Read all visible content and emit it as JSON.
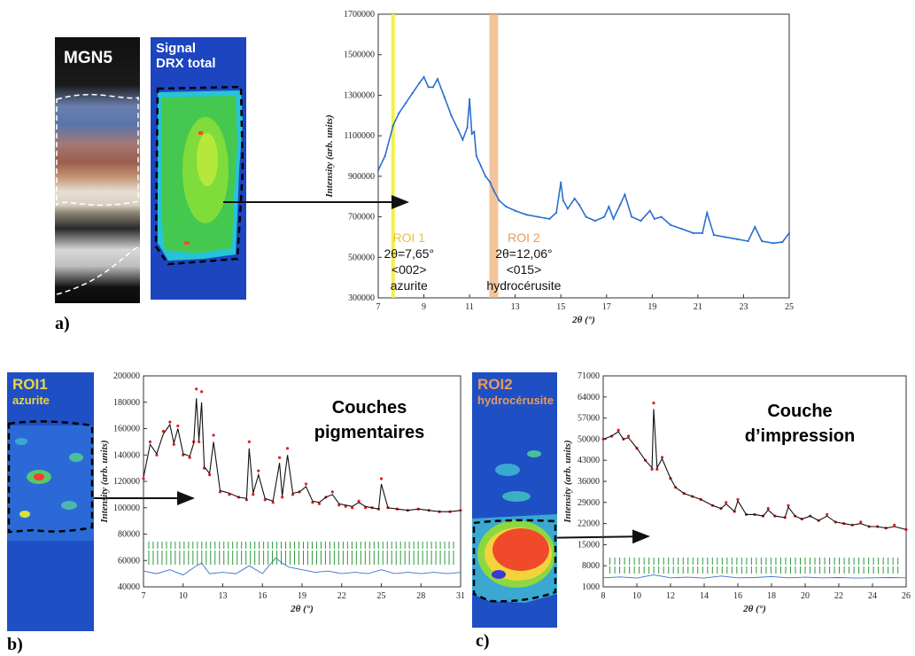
{
  "panels": {
    "a": {
      "letter": "a)",
      "photo_label": "MGN5",
      "map_label_line1": "Signal",
      "map_label_line2": "DRX total"
    },
    "b": {
      "letter": "b)",
      "map_label": "ROI1",
      "map_sublabel": "azurite",
      "annotation_line1": "Couches",
      "annotation_line2": "pigmentaires"
    },
    "c": {
      "letter": "c)",
      "map_label": "ROI2",
      "map_sublabel": "hydrocérusite",
      "annotation_line1": "Couche",
      "annotation_line2": "d’impression"
    }
  },
  "colors": {
    "pattern_blue": "#2a6fd1",
    "roi1_highlight": "#f3f04a",
    "roi2_highlight": "#f0b27a",
    "roi1_text": "#e8c13a",
    "roi2_text": "#e89a5a",
    "fit_red": "#e02020",
    "tick_green": "#2c9a3c",
    "residual_blue": "#3a6fd0"
  },
  "chart_data": [
    {
      "type": "line",
      "xlabel": "2θ (°)",
      "ylabel": "Intensity (arb. units)",
      "xlim": [
        7,
        25
      ],
      "ylim": [
        300000,
        1700000
      ],
      "x_ticks": [
        "7",
        "9",
        "11",
        "13",
        "15",
        "17",
        "19",
        "21",
        "23",
        "25"
      ],
      "y_ticks": [
        "300000",
        "500000",
        "700000",
        "900000",
        "1100000",
        "1300000",
        "1500000",
        "1700000"
      ],
      "grid": false,
      "series": [
        {
          "x": [
            7.0,
            7.3,
            7.65,
            7.9,
            8.2,
            8.5,
            8.8,
            9.0,
            9.2,
            9.4,
            9.6,
            9.9,
            10.2,
            10.5,
            10.7,
            10.9,
            11.0,
            11.1,
            11.2,
            11.3,
            11.5,
            11.7,
            11.9,
            12.06,
            12.3,
            12.6,
            13.0,
            13.5,
            14.0,
            14.5,
            14.8,
            15.0,
            15.1,
            15.3,
            15.6,
            15.8,
            16.1,
            16.5,
            16.9,
            17.1,
            17.3,
            17.6,
            17.8,
            18.1,
            18.5,
            18.9,
            19.1,
            19.4,
            19.8,
            20.3,
            20.8,
            21.2,
            21.4,
            21.7,
            22.2,
            22.7,
            23.2,
            23.5,
            23.8,
            24.3,
            24.7,
            25.0
          ],
          "y": [
            930000,
            1000000,
            1150000,
            1210000,
            1260000,
            1310000,
            1360000,
            1390000,
            1340000,
            1340000,
            1380000,
            1290000,
            1200000,
            1130000,
            1080000,
            1140000,
            1280000,
            1110000,
            1120000,
            1000000,
            950000,
            900000,
            870000,
            830000,
            780000,
            750000,
            730000,
            710000,
            700000,
            690000,
            720000,
            870000,
            780000,
            740000,
            790000,
            760000,
            700000,
            680000,
            700000,
            750000,
            690000,
            760000,
            810000,
            700000,
            680000,
            730000,
            690000,
            700000,
            660000,
            640000,
            620000,
            620000,
            720000,
            610000,
            600000,
            590000,
            580000,
            650000,
            580000,
            570000,
            575000,
            620000
          ]
        }
      ],
      "annotations": [
        {
          "label": "ROI 1",
          "angle": "2θ=7,65°",
          "hkl": "<002>",
          "phase": "azurite",
          "x": 7.65
        },
        {
          "label": "ROI 2",
          "angle": "2θ=12,06°",
          "hkl": "<015>",
          "phase": "hydrocérusite",
          "x": 12.06
        }
      ]
    },
    {
      "type": "line",
      "xlabel": "2θ (°)",
      "ylabel": "Intensity (arb. units)",
      "xlim": [
        7,
        31
      ],
      "ylim": [
        40000,
        200000
      ],
      "x_ticks": [
        "7",
        "10",
        "13",
        "16",
        "19",
        "22",
        "25",
        "28",
        "31"
      ],
      "y_ticks": [
        "40000",
        "60000",
        "80000",
        "100000",
        "120000",
        "140000",
        "160000",
        "180000",
        "200000"
      ],
      "grid": false,
      "series": [
        {
          "name": "observed",
          "x": [
            7.0,
            7.5,
            8.0,
            8.5,
            9.0,
            9.3,
            9.6,
            10.0,
            10.5,
            10.8,
            11.0,
            11.2,
            11.4,
            11.6,
            12.0,
            12.3,
            12.8,
            13.5,
            14.2,
            14.8,
            15.0,
            15.3,
            15.7,
            16.2,
            16.8,
            17.3,
            17.5,
            17.9,
            18.3,
            18.8,
            19.3,
            19.8,
            20.3,
            20.8,
            21.3,
            21.8,
            22.3,
            22.8,
            23.3,
            23.8,
            24.3,
            24.8,
            25.0,
            25.5,
            26.2,
            27.0,
            27.8,
            28.6,
            29.4,
            30.2,
            31.0
          ],
          "y": [
            122000,
            150000,
            140000,
            158000,
            165000,
            148000,
            162000,
            140000,
            138000,
            150000,
            190000,
            150000,
            188000,
            130000,
            125000,
            155000,
            112000,
            110000,
            108000,
            106000,
            150000,
            110000,
            128000,
            106000,
            104000,
            138000,
            108000,
            145000,
            110000,
            112000,
            118000,
            104000,
            103000,
            108000,
            112000,
            102000,
            101000,
            100000,
            105000,
            100000,
            100000,
            99000,
            122000,
            100000,
            99000,
            98000,
            99000,
            98000,
            97000,
            97000,
            98000
          ]
        },
        {
          "name": "calculated",
          "x": [
            7.0,
            7.5,
            8.0,
            8.5,
            9.0,
            9.3,
            9.6,
            10.0,
            10.5,
            10.8,
            11.0,
            11.2,
            11.4,
            11.6,
            12.0,
            12.3,
            12.8,
            13.5,
            14.2,
            14.8,
            15.0,
            15.3,
            15.7,
            16.2,
            16.8,
            17.3,
            17.5,
            17.9,
            18.3,
            18.8,
            19.3,
            19.8,
            20.3,
            20.8,
            21.3,
            21.8,
            22.3,
            22.8,
            23.3,
            23.8,
            24.3,
            24.8,
            25.0,
            25.5,
            26.2,
            27.0,
            27.8,
            28.6,
            29.4,
            30.2,
            31.0
          ],
          "y": [
            123000,
            148000,
            141000,
            156000,
            163000,
            149000,
            160000,
            141000,
            139000,
            149000,
            183000,
            151000,
            180000,
            131000,
            126000,
            150000,
            113000,
            111000,
            108000,
            107000,
            145000,
            111000,
            125000,
            107000,
            105000,
            134000,
            109000,
            140000,
            111000,
            112000,
            116000,
            105000,
            104000,
            108000,
            110000,
            103000,
            102000,
            101000,
            104000,
            101000,
            100000,
            99000,
            118000,
            100000,
            99000,
            98000,
            99000,
            98000,
            97000,
            97000,
            98000
          ]
        },
        {
          "name": "difference",
          "x": [
            7.0,
            8.0,
            9.0,
            10.0,
            11.0,
            11.4,
            12.0,
            13.0,
            14.0,
            15.0,
            16.0,
            17.0,
            17.5,
            18.0,
            19.0,
            20.0,
            21.0,
            22.0,
            23.0,
            24.0,
            25.0,
            26.0,
            27.0,
            28.0,
            29.0,
            30.0,
            31.0
          ],
          "y": [
            52000,
            50000,
            53000,
            49000,
            56000,
            58000,
            50000,
            51000,
            50000,
            56000,
            50000,
            62000,
            58000,
            55000,
            53000,
            51000,
            52000,
            50000,
            51000,
            50000,
            53000,
            50000,
            51000,
            50000,
            51000,
            50000,
            51000
          ]
        }
      ]
    },
    {
      "type": "line",
      "xlabel": "2θ (°)",
      "ylabel": "Intensity (arb. units)",
      "xlim": [
        8,
        26
      ],
      "ylim": [
        1000,
        71000
      ],
      "x_ticks": [
        "8",
        "10",
        "12",
        "14",
        "16",
        "18",
        "20",
        "22",
        "24",
        "26"
      ],
      "y_ticks": [
        "1000",
        "8000",
        "15000",
        "22000",
        "29000",
        "36000",
        "43000",
        "50000",
        "57000",
        "64000",
        "71000"
      ],
      "grid": false,
      "series": [
        {
          "name": "observed",
          "x": [
            8.0,
            8.5,
            8.9,
            9.2,
            9.5,
            10.0,
            10.5,
            10.9,
            11.0,
            11.2,
            11.5,
            12.0,
            12.3,
            12.8,
            13.3,
            13.8,
            14.5,
            15.0,
            15.3,
            15.8,
            16.0,
            16.5,
            17.0,
            17.5,
            17.8,
            18.2,
            18.8,
            19.0,
            19.4,
            19.8,
            20.3,
            20.8,
            21.3,
            21.8,
            22.3,
            22.8,
            23.3,
            23.8,
            24.3,
            24.8,
            25.3,
            26.0
          ],
          "y": [
            50000,
            51000,
            53000,
            50000,
            51000,
            47000,
            43000,
            40000,
            62000,
            40000,
            44000,
            37000,
            34000,
            32000,
            31000,
            30000,
            28000,
            27000,
            29000,
            26000,
            30000,
            25000,
            25000,
            24500,
            27000,
            24500,
            24000,
            28000,
            24500,
            23500,
            24500,
            23000,
            25000,
            22500,
            22000,
            21500,
            22500,
            21000,
            21000,
            20500,
            21500,
            20000
          ]
        },
        {
          "name": "calculated",
          "x": [
            8.0,
            8.5,
            8.9,
            9.2,
            9.5,
            10.0,
            10.5,
            10.9,
            11.0,
            11.2,
            11.5,
            12.0,
            12.3,
            12.8,
            13.3,
            13.8,
            14.5,
            15.0,
            15.3,
            15.8,
            16.0,
            16.5,
            17.0,
            17.5,
            17.8,
            18.2,
            18.8,
            19.0,
            19.4,
            19.8,
            20.3,
            20.8,
            21.3,
            21.8,
            22.3,
            22.8,
            23.3,
            23.8,
            24.3,
            24.8,
            25.3,
            26.0
          ],
          "y": [
            50000,
            51000,
            52500,
            50000,
            50500,
            47000,
            43000,
            40500,
            60000,
            40500,
            43500,
            37000,
            34000,
            32000,
            31000,
            30000,
            28000,
            27000,
            28500,
            26000,
            29500,
            25000,
            25000,
            24500,
            26500,
            24500,
            24000,
            27500,
            24500,
            23500,
            24500,
            23000,
            24500,
            22500,
            22000,
            21500,
            22000,
            21000,
            21000,
            20500,
            21000,
            20000
          ]
        },
        {
          "name": "difference",
          "x": [
            8.0,
            9.0,
            10.0,
            11.0,
            12.0,
            13.0,
            14.0,
            15.0,
            16.0,
            17.0,
            18.0,
            19.0,
            20.0,
            21.0,
            22.0,
            23.0,
            24.0,
            25.0,
            26.0
          ],
          "y": [
            4000,
            4300,
            3900,
            5000,
            4000,
            4200,
            3900,
            4600,
            4000,
            4100,
            4400,
            4000,
            4200,
            4000,
            4100,
            3900,
            4000,
            4100,
            4000
          ]
        }
      ]
    }
  ]
}
